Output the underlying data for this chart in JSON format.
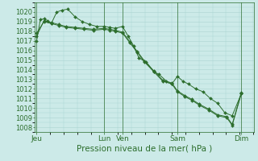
{
  "bg_color": "#cceae8",
  "grid_color": "#aad4d0",
  "line_color": "#2d6e2d",
  "marker_color": "#2d6e2d",
  "xlabel": "Pression niveau de la mer( hPa )",
  "ylim": [
    1007.5,
    1021.0
  ],
  "xlim": [
    0,
    120
  ],
  "yticks": [
    1008,
    1009,
    1010,
    1011,
    1012,
    1013,
    1014,
    1015,
    1016,
    1017,
    1018,
    1019,
    1020
  ],
  "xtick_labels": [
    "Jeu",
    "Lun",
    "Ven",
    "Sam",
    "Dim"
  ],
  "xtick_positions": [
    1,
    38,
    48,
    78,
    113
  ],
  "day_lines_x": [
    1,
    38,
    48,
    78,
    113
  ],
  "series1_x": [
    1,
    3,
    5,
    7,
    9,
    12,
    15,
    18,
    22,
    26,
    30,
    34,
    38,
    41,
    44,
    48,
    51,
    54,
    57,
    61,
    65,
    68,
    72,
    75,
    78,
    81,
    84,
    88,
    92,
    96,
    100,
    104,
    108,
    113
  ],
  "series1_y": [
    1017.0,
    1019.2,
    1019.3,
    1019.1,
    1018.8,
    1020.0,
    1020.2,
    1020.3,
    1019.5,
    1019.0,
    1018.7,
    1018.5,
    1018.5,
    1018.4,
    1018.3,
    1018.5,
    1017.5,
    1016.5,
    1015.2,
    1014.8,
    1013.8,
    1013.5,
    1012.8,
    1012.5,
    1013.3,
    1012.8,
    1012.5,
    1012.0,
    1011.7,
    1011.0,
    1010.5,
    1009.5,
    1009.2,
    1011.5
  ],
  "series2_x": [
    1,
    5,
    9,
    13,
    17,
    22,
    27,
    32,
    38,
    41,
    44,
    48,
    52,
    56,
    60,
    65,
    70,
    75,
    78,
    82,
    86,
    90,
    95,
    100,
    105,
    108,
    113
  ],
  "series2_y": [
    1017.8,
    1019.0,
    1018.8,
    1018.6,
    1018.4,
    1018.3,
    1018.2,
    1018.1,
    1018.2,
    1018.1,
    1018.0,
    1017.8,
    1016.8,
    1015.8,
    1014.8,
    1013.8,
    1012.8,
    1012.5,
    1011.7,
    1011.2,
    1010.8,
    1010.3,
    1009.8,
    1009.2,
    1009.0,
    1008.2,
    1011.5
  ],
  "series3_x": [
    1,
    5,
    9,
    13,
    17,
    22,
    27,
    32,
    38,
    41,
    44,
    48,
    52,
    56,
    60,
    65,
    70,
    75,
    78,
    82,
    86,
    90,
    95,
    100,
    105,
    108,
    113
  ],
  "series3_y": [
    1017.5,
    1019.1,
    1018.9,
    1018.7,
    1018.5,
    1018.4,
    1018.3,
    1018.2,
    1018.3,
    1018.2,
    1018.1,
    1017.9,
    1016.9,
    1015.9,
    1014.9,
    1013.9,
    1012.9,
    1012.6,
    1011.8,
    1011.3,
    1010.9,
    1010.4,
    1009.9,
    1009.3,
    1009.1,
    1008.3,
    1011.6
  ],
  "xlabel_fontsize": 7.5,
  "ytick_fontsize": 6.0,
  "xtick_fontsize": 6.5
}
